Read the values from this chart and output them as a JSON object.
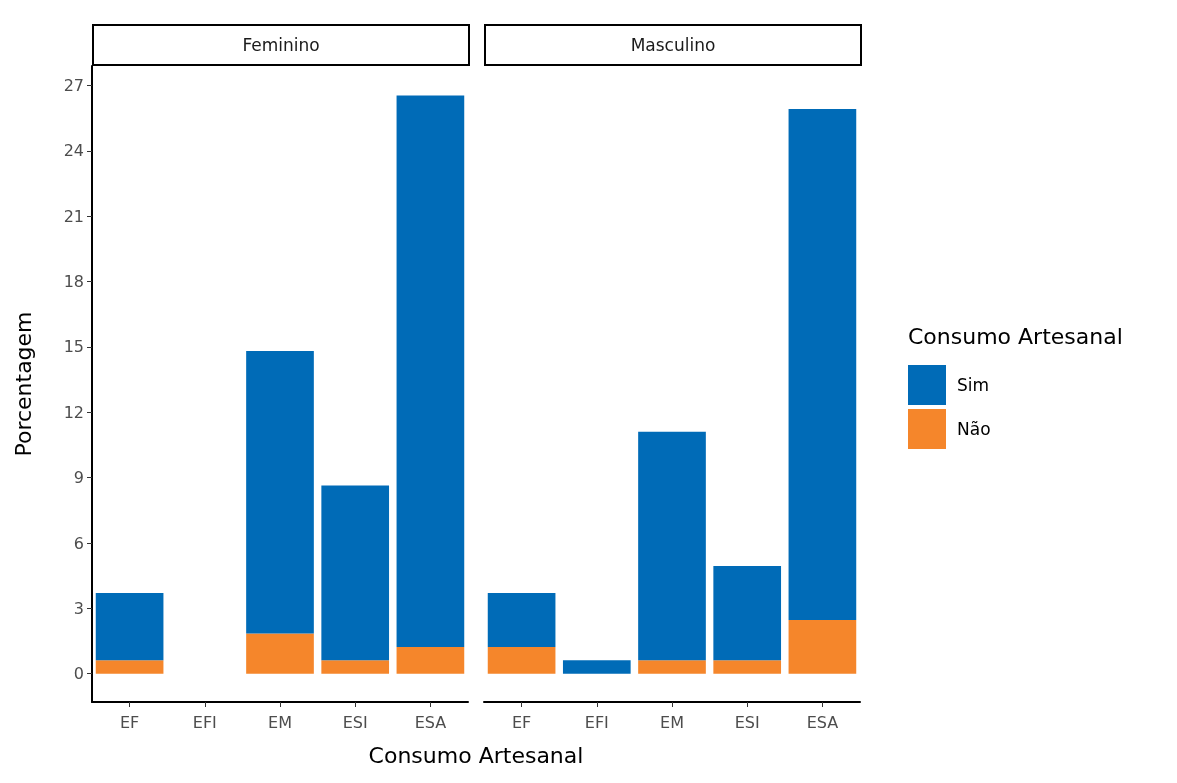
{
  "chart_data": [
    {
      "type": "bar",
      "title": "Feminino",
      "xlabel": "Consumo Artesanal",
      "ylabel": "Porcentagem",
      "categories": [
        "EF",
        "EFI",
        "EM",
        "ESI",
        "ESA"
      ],
      "stacked": true,
      "ylim": [
        -1.3,
        27.9
      ],
      "yticks": [
        0,
        3,
        6,
        9,
        12,
        15,
        18,
        21,
        24,
        27
      ],
      "series": [
        {
          "color": "#f5862b",
          "values": [
            0.62,
            0,
            1.85,
            0.62,
            1.23
          ]
        },
        {
          "color": "#006bb7",
          "values": [
            3.09,
            0,
            12.96,
            8.02,
            25.31
          ]
        }
      ]
    },
    {
      "type": "bar",
      "title": "Masculino",
      "legend_title": "Consumo Artesanal",
      "legend": "right",
      "tick_labels": "x",
      "categories": [
        "EF",
        "EFI",
        "EM",
        "ESI",
        "ESA"
      ],
      "stacked": true,
      "ylim": [
        -1.3,
        27
      ],
      "yticks": [
        0,
        3,
        6,
        9,
        12,
        15,
        18,
        21,
        24,
        27
      ],
      "series": [
        {
          "name": "Não",
          "color": "#f5862b",
          "values": [
            1.23,
            0,
            0.62,
            0.62,
            2.47
          ]
        },
        {
          "name": "Sim",
          "color": "#006bb7",
          "values": [
            2.47,
            0.62,
            10.49,
            4.32,
            23.46
          ]
        }
      ]
    }
  ]
}
